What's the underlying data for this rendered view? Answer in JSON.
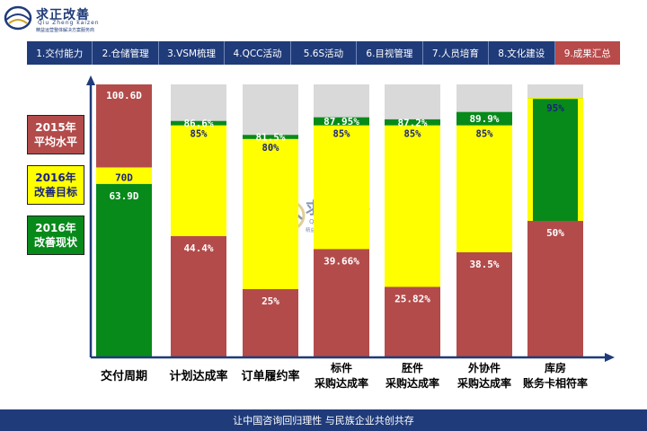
{
  "brand": {
    "title": "求正改善",
    "subtitle": "Qiu Zheng kaizen",
    "tagline": "精益运营整体解决方案服务商"
  },
  "nav": {
    "tabs": [
      "1.交付能力",
      "2.仓储管理",
      "3.VSM梳理",
      "4.QCC活动",
      "5.6S活动",
      "6.目视管理",
      "7.人员培育",
      "8.文化建设",
      "9.成果汇总"
    ],
    "active_index": 8
  },
  "legend": [
    {
      "label": "2015年\n平均水平",
      "color": "#b34b4b",
      "text_color": "#ffffff"
    },
    {
      "label": "2016年\n改善目标",
      "color": "#ffff00",
      "text_color": "#1a237e"
    },
    {
      "label": "2016年\n改善现状",
      "color": "#078a1a",
      "text_color": "#ffffff"
    }
  ],
  "watermark": {
    "title": "求正改善",
    "subtitle": "Qiu Zheng kaizen",
    "tagline": "精益运营整体解决方案服务商"
  },
  "footer": {
    "text": "让中国咨询回归理性  与民族企业共创共存"
  },
  "chart_data": {
    "type": "bar",
    "categories": [
      [
        "交付周期"
      ],
      [
        "计划达成率"
      ],
      [
        "订单履约率"
      ],
      [
        "标件",
        "采购达成率"
      ],
      [
        "胚件",
        "采购达成率"
      ],
      [
        "外协件",
        "采购达成率"
      ],
      [
        "库房",
        "账务卡相符率"
      ]
    ],
    "colors": {
      "baseline": "#b34b4b",
      "target": "#ffff00",
      "current": "#078a1a",
      "remainder": "#d9d9d9"
    },
    "delivery_cycle": {
      "baseline": 100.6,
      "baseline_label": "100.6D",
      "target": 70,
      "target_label": "70D",
      "current": 63.9,
      "current_label": "63.9D",
      "max": 100.6
    },
    "rates": [
      {
        "baseline": 44.4,
        "baseline_label": "44.4%",
        "target": 85,
        "target_label": "85%",
        "current": 86.6,
        "current_label": "86.6%"
      },
      {
        "baseline": 25,
        "baseline_label": "25%",
        "target": 80,
        "target_label": "80%",
        "current": 81.5,
        "current_label": "81.5%"
      },
      {
        "baseline": 39.66,
        "baseline_label": "39.66%",
        "target": 85,
        "target_label": "85%",
        "current": 87.95,
        "current_label": "87.95%"
      },
      {
        "baseline": 25.82,
        "baseline_label": "25.82%",
        "target": 85,
        "target_label": "85%",
        "current": 87.2,
        "current_label": "87.2%"
      },
      {
        "baseline": 38.5,
        "baseline_label": "38.5%",
        "target": 85,
        "target_label": "85%",
        "current": 89.9,
        "current_label": "89.9%"
      },
      {
        "baseline": 50,
        "baseline_label": "50%",
        "target": 95,
        "target_label": "95%",
        "current": 95,
        "current_label": "95%"
      }
    ],
    "ylim": [
      0,
      100
    ]
  }
}
